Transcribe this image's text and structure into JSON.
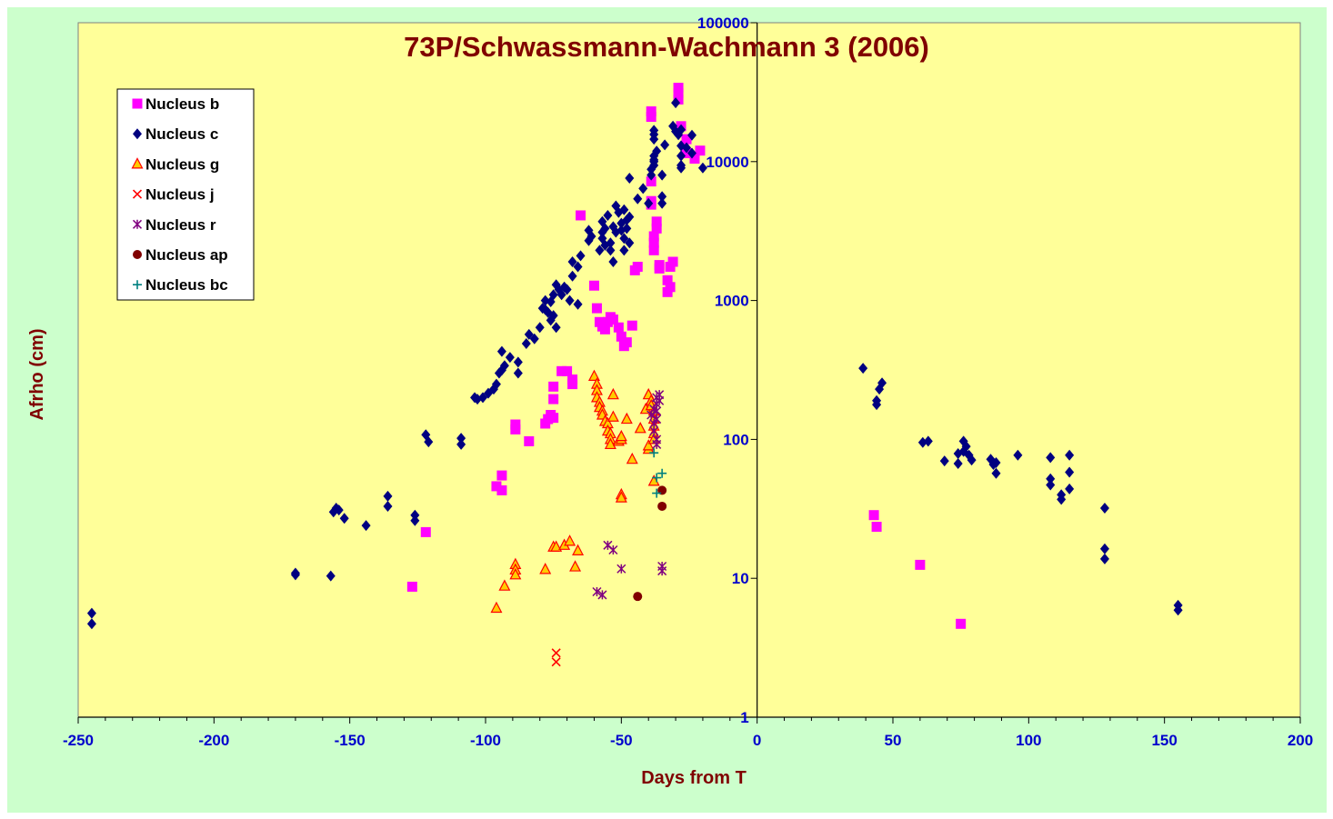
{
  "chart_data": {
    "type": "scatter",
    "title": "73P/Schwassmann-Wachmann 3 (2006)",
    "xlabel": "Days from T",
    "ylabel": "Afrho (cm)",
    "xlim": [
      -250,
      200
    ],
    "ylim": [
      1,
      100000
    ],
    "yscale": "log",
    "x_ticks": [
      -250,
      -200,
      -150,
      -100,
      -50,
      0,
      50,
      100,
      150,
      200
    ],
    "x_tick_labels": [
      "-250",
      "-200",
      "-150",
      "-100",
      "-50",
      "0",
      "50",
      "100",
      "150",
      "200"
    ],
    "y_ticks": [
      1,
      10,
      100,
      1000,
      10000,
      100000
    ],
    "y_tick_labels": [
      "1",
      "10",
      "100",
      "1000",
      "10000",
      "100000"
    ],
    "legend_position": "top-left",
    "colors": {
      "figure_background": "#ccffcc",
      "plot_background": "#ffff99",
      "axis_text": "#0000cc",
      "title_text": "#800000"
    },
    "series": [
      {
        "name": "Nucleus b",
        "marker": "square",
        "color": "#ff00ff",
        "points": [
          [
            -127,
            8.7
          ],
          [
            -122,
            21.5
          ],
          [
            -96,
            46
          ],
          [
            -94,
            43
          ],
          [
            -94,
            55
          ],
          [
            -89,
            118
          ],
          [
            -89,
            128
          ],
          [
            -84,
            97
          ],
          [
            -78,
            130
          ],
          [
            -77,
            140
          ],
          [
            -76,
            150
          ],
          [
            -75,
            195
          ],
          [
            -75,
            240
          ],
          [
            -75,
            143
          ],
          [
            -72,
            310
          ],
          [
            -70,
            310
          ],
          [
            -68,
            250
          ],
          [
            -68,
            270
          ],
          [
            -60,
            1280
          ],
          [
            -59,
            880
          ],
          [
            -58,
            700
          ],
          [
            -57,
            650
          ],
          [
            -56,
            620
          ],
          [
            -55,
            700
          ],
          [
            -54,
            760
          ],
          [
            -53,
            730
          ],
          [
            -51,
            640
          ],
          [
            -50,
            550
          ],
          [
            -49,
            470
          ],
          [
            -48,
            500
          ],
          [
            -46,
            660
          ],
          [
            -45,
            1650
          ],
          [
            -44,
            1750
          ],
          [
            -65,
            4100
          ],
          [
            -39,
            4900
          ],
          [
            -39,
            5200
          ],
          [
            -39,
            7200
          ],
          [
            -38,
            2300
          ],
          [
            -38,
            2600
          ],
          [
            -38,
            2900
          ],
          [
            -37,
            3300
          ],
          [
            -37,
            3700
          ],
          [
            -36,
            1700
          ],
          [
            -36,
            1800
          ],
          [
            -33,
            1150
          ],
          [
            -33,
            1400
          ],
          [
            -32,
            1250
          ],
          [
            -32,
            1750
          ],
          [
            -31,
            1900
          ],
          [
            -39,
            21000
          ],
          [
            -39,
            23000
          ],
          [
            -29,
            28000
          ],
          [
            -29,
            31000
          ],
          [
            -29,
            34000
          ],
          [
            -28,
            18000
          ],
          [
            -26,
            11500
          ],
          [
            -26,
            14500
          ],
          [
            -23,
            10500
          ],
          [
            -21,
            12000
          ],
          [
            43,
            28.5
          ],
          [
            44,
            23.5
          ],
          [
            60,
            12.5
          ],
          [
            75,
            4.7
          ]
        ]
      },
      {
        "name": "Nucleus c",
        "marker": "diamond",
        "color": "#000080",
        "points": [
          [
            -245,
            5.6
          ],
          [
            -245,
            4.7
          ],
          [
            -170,
            10.9
          ],
          [
            -170,
            10.6
          ],
          [
            -157,
            10.4
          ],
          [
            -156,
            30
          ],
          [
            -155,
            32
          ],
          [
            -154,
            31
          ],
          [
            -152,
            27
          ],
          [
            -144,
            24
          ],
          [
            -136,
            39
          ],
          [
            -136,
            33
          ],
          [
            -126,
            28.5
          ],
          [
            -126,
            26
          ],
          [
            -122,
            108
          ],
          [
            -121,
            96
          ],
          [
            -109,
            102
          ],
          [
            -109,
            92
          ],
          [
            -104,
            200
          ],
          [
            -103,
            195
          ],
          [
            -101,
            200
          ],
          [
            -99,
            215
          ],
          [
            -97,
            230
          ],
          [
            -96,
            250
          ],
          [
            -95,
            300
          ],
          [
            -94,
            315
          ],
          [
            -94,
            430
          ],
          [
            -93,
            340
          ],
          [
            -91,
            390
          ],
          [
            -88,
            360
          ],
          [
            -88,
            300
          ],
          [
            -85,
            490
          ],
          [
            -84,
            570
          ],
          [
            -82,
            530
          ],
          [
            -80,
            640
          ],
          [
            -79,
            880
          ],
          [
            -78,
            1000
          ],
          [
            -78,
            860
          ],
          [
            -77,
            820
          ],
          [
            -76,
            980
          ],
          [
            -76,
            720
          ],
          [
            -75,
            1100
          ],
          [
            -75,
            780
          ],
          [
            -74,
            1300
          ],
          [
            -74,
            640
          ],
          [
            -73,
            1200
          ],
          [
            -72,
            1100
          ],
          [
            -71,
            1250
          ],
          [
            -70,
            1200
          ],
          [
            -69,
            1000
          ],
          [
            -68,
            1500
          ],
          [
            -68,
            1900
          ],
          [
            -66,
            1750
          ],
          [
            -66,
            940
          ],
          [
            -65,
            2100
          ],
          [
            -62,
            2700
          ],
          [
            -62,
            3200
          ],
          [
            -61,
            2900
          ],
          [
            -58,
            2300
          ],
          [
            -57,
            3100
          ],
          [
            -57,
            2800
          ],
          [
            -57,
            3700
          ],
          [
            -56,
            3300
          ],
          [
            -56,
            2500
          ],
          [
            -55,
            4100
          ],
          [
            -54,
            2600
          ],
          [
            -54,
            2300
          ],
          [
            -53,
            1900
          ],
          [
            -53,
            3400
          ],
          [
            -52,
            3100
          ],
          [
            -52,
            4800
          ],
          [
            -51,
            4300
          ],
          [
            -50,
            3200
          ],
          [
            -50,
            3600
          ],
          [
            -49,
            4500
          ],
          [
            -49,
            2800
          ],
          [
            -49,
            2300
          ],
          [
            -48,
            3800
          ],
          [
            -48,
            3300
          ],
          [
            -47,
            4000
          ],
          [
            -47,
            2600
          ],
          [
            -47,
            7600
          ],
          [
            -44,
            5400
          ],
          [
            -42,
            6400
          ],
          [
            -40,
            5000
          ],
          [
            -39,
            8800
          ],
          [
            -39,
            8000
          ],
          [
            -38,
            10000
          ],
          [
            -38,
            11000
          ],
          [
            -38,
            10300
          ],
          [
            -38,
            9400
          ],
          [
            -38,
            14500
          ],
          [
            -38,
            15700
          ],
          [
            -38,
            16800
          ],
          [
            -37,
            11900
          ],
          [
            -35,
            5600
          ],
          [
            -35,
            8000
          ],
          [
            -35,
            5000
          ],
          [
            -34,
            13200
          ],
          [
            -31,
            18000
          ],
          [
            -30,
            16500
          ],
          [
            -29,
            15600
          ],
          [
            -28,
            9400
          ],
          [
            -28,
            9000
          ],
          [
            -28,
            11000
          ],
          [
            -28,
            13000
          ],
          [
            -26,
            12600
          ],
          [
            -24,
            15500
          ],
          [
            -24,
            11500
          ],
          [
            -20,
            9000
          ],
          [
            -30,
            26500
          ],
          [
            -28,
            17000
          ],
          [
            39,
            325
          ],
          [
            44,
            190
          ],
          [
            44,
            178
          ],
          [
            45,
            230
          ],
          [
            46,
            255
          ],
          [
            61,
            95
          ],
          [
            63,
            97
          ],
          [
            69,
            70
          ],
          [
            74,
            67
          ],
          [
            74,
            79
          ],
          [
            76,
            97
          ],
          [
            76,
            82
          ],
          [
            77,
            89
          ],
          [
            78,
            77
          ],
          [
            79,
            71
          ],
          [
            86,
            72
          ],
          [
            87,
            66
          ],
          [
            88,
            68
          ],
          [
            88,
            57
          ],
          [
            96,
            77
          ],
          [
            108,
            74
          ],
          [
            108,
            52
          ],
          [
            108,
            47
          ],
          [
            112,
            40
          ],
          [
            112,
            37
          ],
          [
            115,
            77
          ],
          [
            115,
            58
          ],
          [
            115,
            44
          ],
          [
            128,
            32
          ],
          [
            128,
            16.3
          ],
          [
            128,
            13.8
          ],
          [
            155,
            6.4
          ],
          [
            155,
            5.9
          ]
        ]
      },
      {
        "name": "Nucleus g",
        "marker": "triangle",
        "color": "#ffcc00",
        "edge_color": "#ff0000",
        "points": [
          [
            -96,
            6.1
          ],
          [
            -93,
            8.8
          ],
          [
            -89,
            12.6
          ],
          [
            -89,
            11.5
          ],
          [
            -89,
            10.6
          ],
          [
            -78,
            11.6
          ],
          [
            -75,
            16.8
          ],
          [
            -74,
            16.8
          ],
          [
            -71,
            17.3
          ],
          [
            -69,
            18.5
          ],
          [
            -67,
            12.1
          ],
          [
            -66,
            15.8
          ],
          [
            -60,
            285
          ],
          [
            -59,
            250
          ],
          [
            -59,
            225
          ],
          [
            -59,
            200
          ],
          [
            -58,
            185
          ],
          [
            -58,
            170
          ],
          [
            -57,
            160
          ],
          [
            -57,
            150
          ],
          [
            -56,
            135
          ],
          [
            -55,
            130
          ],
          [
            -55,
            115
          ],
          [
            -54,
            110
          ],
          [
            -54,
            100
          ],
          [
            -54,
            92
          ],
          [
            -53,
            210
          ],
          [
            -53,
            145
          ],
          [
            -51,
            97
          ],
          [
            -50,
            100
          ],
          [
            -50,
            105
          ],
          [
            -50,
            40
          ],
          [
            -50,
            38
          ],
          [
            -48,
            140
          ],
          [
            -46,
            72
          ],
          [
            -43,
            120
          ],
          [
            -41,
            165
          ],
          [
            -40,
            85
          ],
          [
            -40,
            90
          ],
          [
            -40,
            210
          ],
          [
            -39,
            190
          ],
          [
            -39,
            175
          ],
          [
            -38,
            160
          ],
          [
            -38,
            140
          ],
          [
            -38,
            125
          ],
          [
            -38,
            110
          ],
          [
            -38,
            100
          ],
          [
            -38,
            50
          ]
        ]
      },
      {
        "name": "Nucleus j",
        "marker": "x",
        "color": "#ff0000",
        "points": [
          [
            -74,
            2.9
          ],
          [
            -74,
            2.5
          ]
        ]
      },
      {
        "name": "Nucleus r",
        "marker": "star",
        "color": "#800080",
        "points": [
          [
            -59,
            8
          ],
          [
            -57,
            7.6
          ],
          [
            -55,
            17.3
          ],
          [
            -53,
            16
          ],
          [
            -50,
            11.7
          ],
          [
            -39,
            150
          ],
          [
            -38,
            165
          ],
          [
            -38,
            130
          ],
          [
            -38,
            115
          ],
          [
            -37,
            200
          ],
          [
            -37,
            180
          ],
          [
            -37,
            160
          ],
          [
            -37,
            140
          ],
          [
            -37,
            100
          ],
          [
            -37,
            92
          ],
          [
            -36,
            210
          ],
          [
            -36,
            190
          ],
          [
            -35,
            12.2
          ],
          [
            -35,
            11.3
          ]
        ]
      },
      {
        "name": "Nucleus ap",
        "marker": "circle",
        "color": "#800000",
        "points": [
          [
            -44,
            7.4
          ],
          [
            -35,
            43
          ],
          [
            -35,
            33
          ]
        ]
      },
      {
        "name": "Nucleus bc",
        "marker": "plus",
        "color": "#008080",
        "points": [
          [
            -38,
            80
          ],
          [
            -37,
            53
          ],
          [
            -37,
            41
          ],
          [
            -35,
            57
          ]
        ]
      }
    ]
  }
}
